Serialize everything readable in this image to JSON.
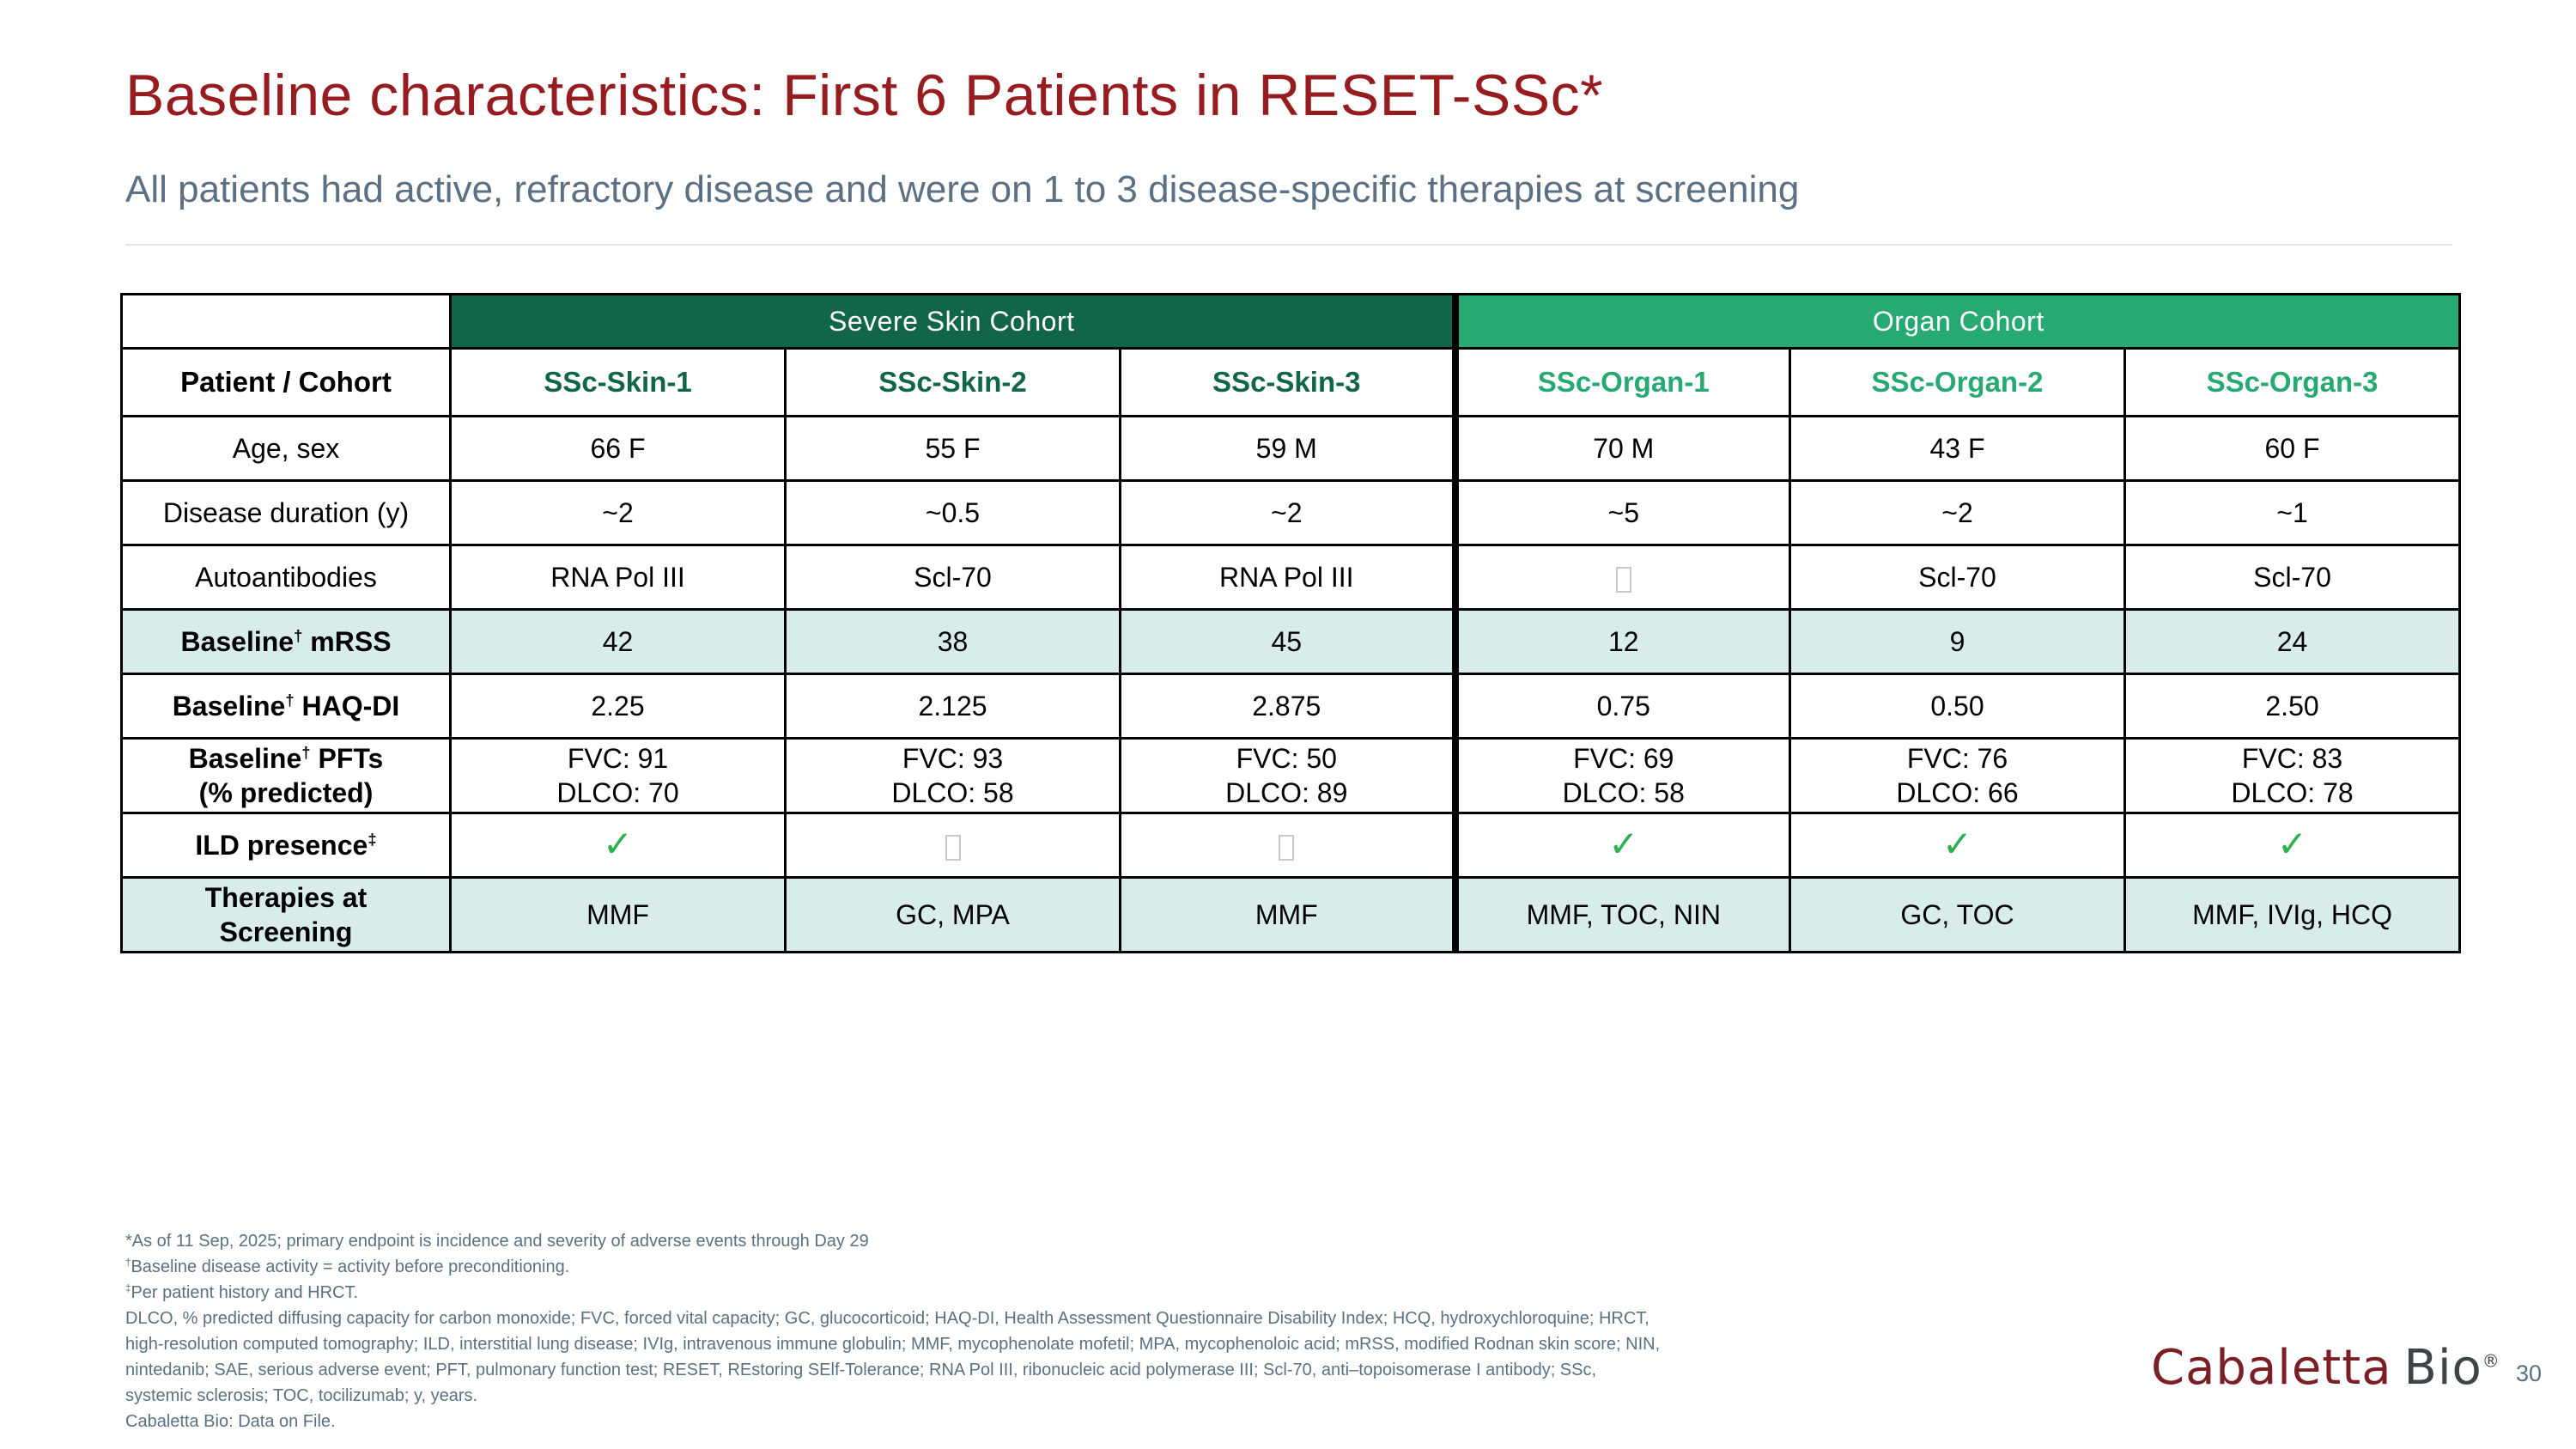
{
  "slide": {
    "title": "Baseline characteristics: First 6 Patients in RESET-SSc*",
    "subtitle": "All patients had active, refractory disease and were on 1 to 3 disease-specific therapies at screening",
    "page_number": "30",
    "logo": {
      "brand_primary": "Cabaletta",
      "brand_secondary": "Bio",
      "registered_mark": "®"
    }
  },
  "colors": {
    "title_maroon": "#961C20",
    "subtitle_slate": "#5B7083",
    "dark_green": "#116548",
    "organ_green": "#27AA72",
    "highlight_teal": "#D8ECEC",
    "check_green": "#2CB14E",
    "border_black": "#000000",
    "logo_maroon": "#7A2025",
    "logo_gray": "#3F4447",
    "footnote_slate": "#5B7083",
    "divider_gray": "#E3E3E3"
  },
  "icons": {
    "check-icon": "✓",
    "empty-box-icon": "□"
  },
  "table": {
    "corner_label": "Patient / Cohort",
    "cohorts": [
      {
        "label": "Severe Skin Cohort"
      },
      {
        "label": "Organ Cohort"
      }
    ],
    "patients": [
      {
        "label": "SSc-Skin-1",
        "cohort": "skin"
      },
      {
        "label": "SSc-Skin-2",
        "cohort": "skin"
      },
      {
        "label": "SSc-Skin-3",
        "cohort": "skin"
      },
      {
        "label": "SSc-Organ-1",
        "cohort": "organ"
      },
      {
        "label": "SSc-Organ-2",
        "cohort": "organ"
      },
      {
        "label": "SSc-Organ-3",
        "cohort": "organ"
      }
    ],
    "rows": [
      {
        "key": "age",
        "label": "Age, sex",
        "values": [
          "66 F",
          "55 F",
          "59 M",
          "70 M",
          "43 F",
          "60 F"
        ]
      },
      {
        "key": "duration",
        "label": "Disease duration (y)",
        "values": [
          "~2",
          "~0.5",
          "~2",
          "~5",
          "~2",
          "~1"
        ]
      },
      {
        "key": "autoantibodies",
        "label": "Autoantibodies",
        "values": [
          "RNA Pol III",
          "Scl-70",
          "RNA Pol III",
          "□",
          "Scl-70",
          "Scl-70"
        ]
      },
      {
        "key": "mrss",
        "label": "Baseline† mRSS",
        "highlight": true,
        "bold": true,
        "values": [
          "42",
          "38",
          "45",
          "12",
          "9",
          "24"
        ]
      },
      {
        "key": "haq",
        "label": "Baseline† HAQ-DI",
        "values": [
          "2.25",
          "2.125",
          "2.875",
          "0.75",
          "0.50",
          "2.50"
        ]
      },
      {
        "key": "pfts",
        "label": "Baseline† PFTs\n(% predicted)",
        "values": [
          "FVC: 91\nDLCO: 70",
          "FVC: 93\nDLCO: 58",
          "FVC: 50\nDLCO: 89",
          "FVC: 69\nDLCO: 58",
          "FVC: 76\nDLCO: 66",
          "FVC: 83\nDLCO: 78"
        ]
      },
      {
        "key": "ild",
        "label": "ILD presence‡",
        "values": [
          "✓",
          "□",
          "□",
          "✓",
          "✓",
          "✓"
        ]
      },
      {
        "key": "therapies",
        "label": "Therapies at\nScreening",
        "highlight": true,
        "values": [
          "MMF",
          "GC, MPA",
          "MMF",
          "MMF, TOC, NIN",
          "GC, TOC",
          "MMF, IVIg, HCQ"
        ]
      }
    ]
  },
  "footnotes": [
    "*As of 11 Sep, 2025; primary endpoint is incidence and severity of adverse events through Day 29",
    "†Baseline disease activity = activity before preconditioning.",
    "‡Per patient history and HRCT.",
    "DLCO, % predicted diffusing capacity for carbon monoxide; FVC, forced vital capacity; GC, glucocorticoid; HAQ-DI, Health Assessment Questionnaire Disability Index; HCQ, hydroxychloroquine; HRCT,",
    "high-resolution computed tomography; ILD, interstitial lung disease; IVIg, intravenous immune globulin; MMF, mycophenolate mofetil; MPA, mycophenoloic acid; mRSS, modified Rodnan skin score; NIN,",
    "nintedanib; SAE, serious adverse event; PFT, pulmonary function test;  RESET, REstoring SElf-Tolerance; RNA Pol III, ribonucleic acid polymerase III; Scl-70, anti–topoisomerase I antibody; SSc,",
    "systemic sclerosis; TOC, tocilizumab; y, years.",
    "Cabaletta Bio: Data on File."
  ]
}
